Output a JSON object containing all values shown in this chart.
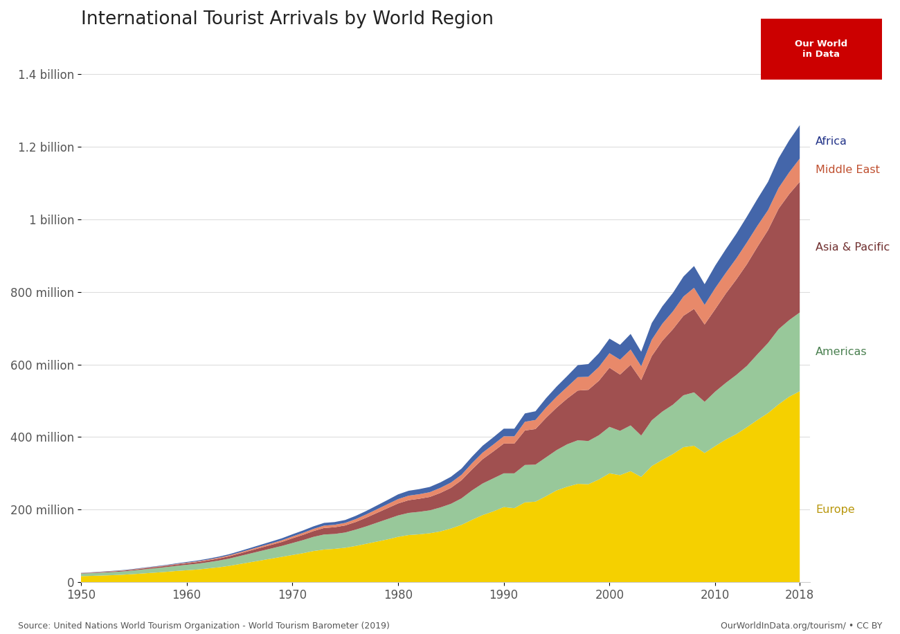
{
  "title": "International Tourist Arrivals by World Region",
  "background_color": "#ffffff",
  "source_text": "Source: United Nations World Tourism Organization - World Tourism Barometer (2019)",
  "source_right": "OurWorldInData.org/tourism/ • CC BY",
  "years": [
    1950,
    1951,
    1952,
    1953,
    1954,
    1955,
    1956,
    1957,
    1958,
    1959,
    1960,
    1961,
    1962,
    1963,
    1964,
    1965,
    1966,
    1967,
    1968,
    1969,
    1970,
    1971,
    1972,
    1973,
    1974,
    1975,
    1976,
    1977,
    1978,
    1979,
    1980,
    1981,
    1982,
    1983,
    1984,
    1985,
    1986,
    1987,
    1988,
    1989,
    1990,
    1991,
    1992,
    1993,
    1994,
    1995,
    1996,
    1997,
    1998,
    1999,
    2000,
    2001,
    2002,
    2003,
    2004,
    2005,
    2006,
    2007,
    2008,
    2009,
    2010,
    2011,
    2012,
    2013,
    2014,
    2015,
    2016,
    2017,
    2018
  ],
  "europe": [
    16.8,
    17.5,
    18.5,
    19.5,
    20.8,
    22.5,
    24.5,
    26.5,
    28.5,
    31.0,
    33.0,
    35.0,
    38.0,
    41.0,
    45.0,
    50.0,
    55.0,
    60.0,
    65.0,
    70.0,
    75.0,
    80.0,
    86.0,
    90.0,
    92.0,
    95.0,
    100.0,
    106.0,
    112.0,
    118.0,
    125.0,
    130.0,
    132.0,
    135.0,
    140.0,
    148.0,
    158.0,
    172.0,
    185.0,
    195.0,
    207.0,
    204.0,
    220.0,
    222.0,
    237.0,
    253.0,
    263.0,
    271.0,
    270.0,
    283.0,
    300.0,
    295.0,
    306.0,
    290.0,
    320.0,
    337.0,
    353.0,
    372.0,
    376.0,
    356.0,
    375.0,
    393.0,
    408.0,
    427.0,
    447.0,
    466.0,
    490.0,
    511.0,
    526.0
  ],
  "americas": [
    7.0,
    7.5,
    8.0,
    8.5,
    9.0,
    10.0,
    11.0,
    12.0,
    13.0,
    14.0,
    15.0,
    16.0,
    17.0,
    18.5,
    20.0,
    22.0,
    24.0,
    26.0,
    28.0,
    30.0,
    33.0,
    36.0,
    39.0,
    41.5,
    41.0,
    42.0,
    45.0,
    48.0,
    52.0,
    56.0,
    59.0,
    61.0,
    62.0,
    63.0,
    66.0,
    68.0,
    73.0,
    81.0,
    87.0,
    91.0,
    93.0,
    96.0,
    103.0,
    102.0,
    107.0,
    111.0,
    117.0,
    120.0,
    119.0,
    122.0,
    128.0,
    122.0,
    126.0,
    114.0,
    126.0,
    133.0,
    136.0,
    143.0,
    147.0,
    141.0,
    150.0,
    156.0,
    163.0,
    169.0,
    181.0,
    193.0,
    207.0,
    211.0,
    217.0
  ],
  "asia_pacific": [
    1.0,
    1.2,
    1.5,
    1.8,
    2.0,
    2.3,
    2.7,
    3.0,
    3.3,
    3.7,
    4.0,
    4.5,
    5.0,
    5.5,
    6.2,
    7.0,
    8.0,
    9.0,
    10.0,
    11.0,
    13.0,
    14.5,
    16.0,
    18.0,
    18.5,
    19.5,
    21.0,
    24.0,
    27.0,
    30.0,
    33.0,
    35.0,
    36.0,
    37.0,
    40.0,
    44.0,
    50.0,
    58.0,
    67.0,
    74.0,
    82.0,
    82.0,
    95.0,
    98.0,
    109.0,
    117.0,
    126.0,
    137.0,
    141.0,
    150.0,
    163.0,
    155.0,
    167.0,
    153.0,
    177.0,
    195.0,
    208.0,
    219.0,
    230.0,
    213.0,
    227.0,
    246.0,
    263.0,
    280.0,
    296.0,
    311.0,
    332.0,
    347.0,
    360.0
  ],
  "middle_east": [
    0.5,
    0.6,
    0.7,
    0.8,
    0.9,
    1.0,
    1.1,
    1.2,
    1.3,
    1.5,
    1.8,
    2.0,
    2.2,
    2.5,
    2.8,
    3.0,
    3.3,
    3.7,
    4.0,
    4.5,
    5.0,
    5.5,
    6.0,
    6.5,
    6.8,
    7.0,
    8.0,
    9.0,
    10.0,
    11.0,
    12.0,
    12.5,
    12.5,
    13.0,
    14.0,
    14.5,
    15.0,
    17.0,
    18.0,
    19.0,
    20.0,
    20.0,
    24.0,
    25.0,
    28.0,
    30.0,
    32.0,
    37.0,
    36.0,
    38.0,
    40.0,
    41.0,
    42.0,
    38.0,
    45.0,
    47.0,
    49.0,
    53.0,
    58.0,
    54.0,
    58.0,
    57.0,
    58.0,
    60.0,
    58.0,
    55.0,
    57.0,
    60.0,
    64.0
  ],
  "africa": [
    0.5,
    0.6,
    0.7,
    0.8,
    0.9,
    1.0,
    1.1,
    1.2,
    1.4,
    1.6,
    2.0,
    2.2,
    2.5,
    2.8,
    3.0,
    3.5,
    4.0,
    4.5,
    5.0,
    5.5,
    6.0,
    6.5,
    7.0,
    7.5,
    7.5,
    8.0,
    9.0,
    9.5,
    10.5,
    11.5,
    13.0,
    13.5,
    14.0,
    14.5,
    15.0,
    16.0,
    17.0,
    18.0,
    19.0,
    20.0,
    21.0,
    21.0,
    23.0,
    24.0,
    26.0,
    28.0,
    30.0,
    33.0,
    35.0,
    38.0,
    40.0,
    41.0,
    43.0,
    40.0,
    46.0,
    48.0,
    51.0,
    55.0,
    60.0,
    57.0,
    62.0,
    65.0,
    68.0,
    71.0,
    74.0,
    78.0,
    82.0,
    88.0,
    92.0
  ],
  "colors": {
    "europe": "#F5D000",
    "americas": "#98C89A",
    "asia_pacific": "#A05050",
    "middle_east": "#E8896A",
    "africa": "#4466AA"
  },
  "labels": {
    "europe": "Europe",
    "americas": "Americas",
    "asia_pacific": "Asia & Pacific",
    "middle_east": "Middle East",
    "africa": "Africa"
  },
  "label_colors": {
    "europe": "#B8960A",
    "americas": "#4A8050",
    "asia_pacific": "#703030",
    "middle_east": "#C05030",
    "africa": "#223388"
  },
  "ytick_labels": [
    "0",
    "200 million",
    "400 million",
    "600 million",
    "800 million",
    "1 billion",
    "1.2 billion",
    "1.4 billion"
  ],
  "ytick_values": [
    0,
    200,
    400,
    600,
    800,
    1000,
    1200,
    1400
  ],
  "ylim": [
    0,
    1500
  ],
  "xlim": [
    1950,
    2019
  ]
}
